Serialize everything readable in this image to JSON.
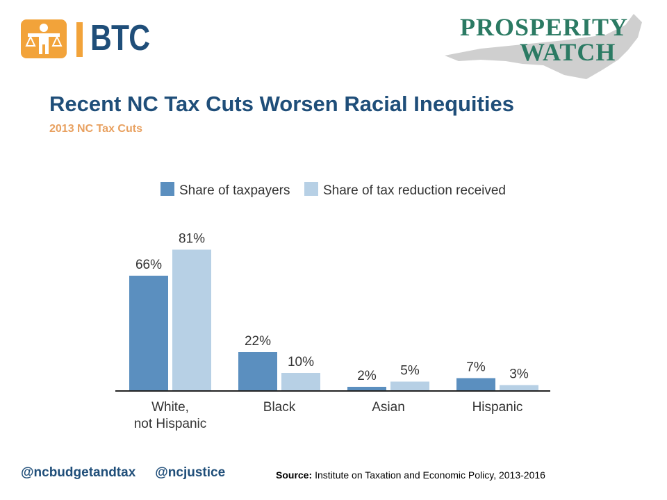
{
  "logos": {
    "btc_text": "BTC",
    "prosperity_line1": "PROSPERITY",
    "prosperity_line2": "WATCH"
  },
  "title": "Recent NC Tax Cuts Worsen Racial Inequities",
  "subtitle": "2013 NC Tax Cuts",
  "colors": {
    "title": "#1f4e79",
    "subtitle": "#e8a05f",
    "taxpayers": "#5b8fbf",
    "reduction": "#b7d0e5",
    "btc_orange": "#f2a33a",
    "prosperity_green": "#2b7a63"
  },
  "chart_data": {
    "type": "bar",
    "categories": [
      "White,\nnot Hispanic",
      "Black",
      "Asian",
      "Hispanic"
    ],
    "series": [
      {
        "name": "Share of taxpayers",
        "values": [
          66,
          22,
          2,
          7
        ],
        "labels": [
          "66%",
          "22%",
          "2%",
          "7%"
        ]
      },
      {
        "name": "Share of tax reduction received",
        "values": [
          81,
          10,
          5,
          3
        ],
        "labels": [
          "81%",
          "10%",
          "5%",
          "3%"
        ]
      }
    ],
    "ylim": [
      0,
      100
    ],
    "unit": "%",
    "grid": false,
    "legend_position": "top"
  },
  "footer": {
    "handle1": "@ncbudgetandtax",
    "handle2": "@ncjustice",
    "source_label": "Source:",
    "source_text": "Institute  on Taxation and Economic Policy, 2013-2016"
  }
}
